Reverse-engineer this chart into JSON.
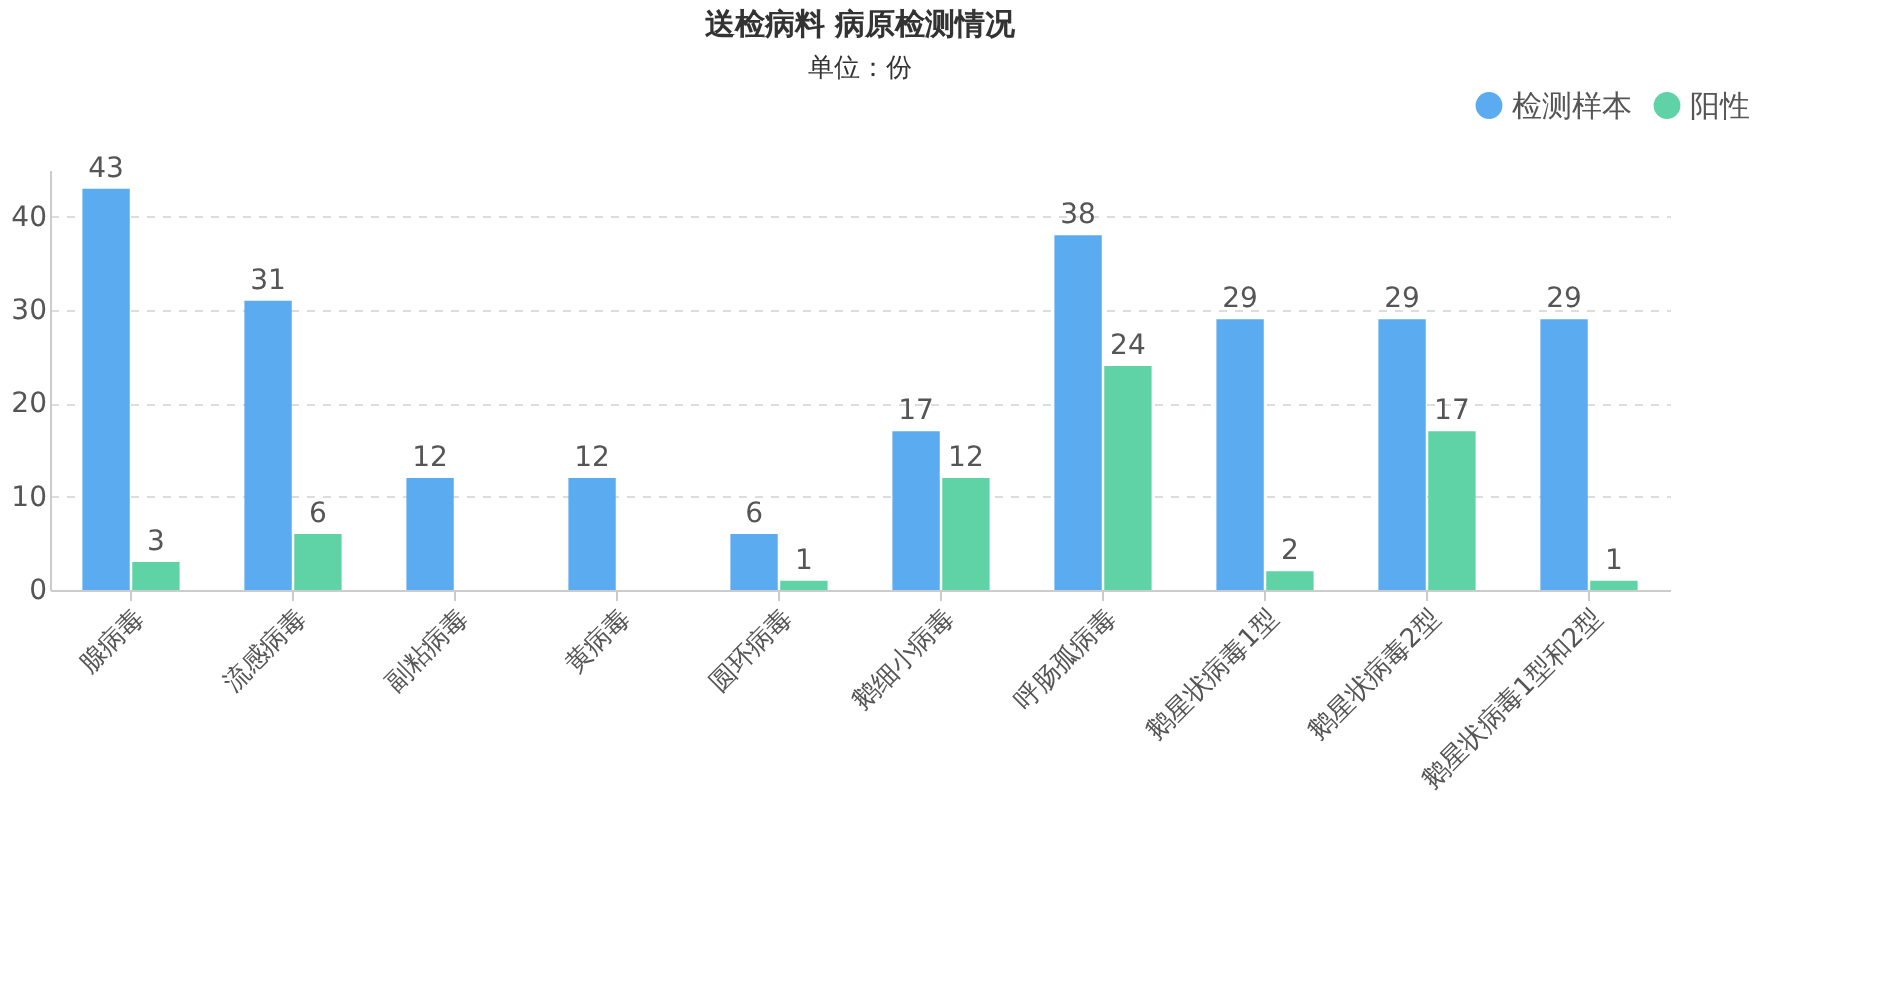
{
  "chart_data": {
    "type": "bar",
    "title": "送检病料 病原检测情况",
    "ylabel": "单位：份",
    "categories": [
      "腺病毒",
      "流感病毒",
      "副粘病毒",
      "黄病毒",
      "圆环病毒",
      "鹅细小病毒",
      "呼肠孤病毒",
      "鹅星状病毒1型",
      "鹅星状病毒2型",
      "鹅星状病毒1型和2型"
    ],
    "series": [
      {
        "name": "检测样本",
        "color": "#5aabf0",
        "values": [
          43,
          31,
          12,
          12,
          6,
          17,
          38,
          29,
          29,
          29
        ]
      },
      {
        "name": "阳性",
        "color": "#5fd3a5",
        "values": [
          3,
          6,
          null,
          null,
          1,
          12,
          24,
          2,
          17,
          1
        ]
      }
    ],
    "ylim": [
      0,
      45
    ],
    "yticks": [
      0,
      10,
      20,
      30,
      40
    ],
    "grid": "y",
    "legend": "top right",
    "data_labels": true
  }
}
